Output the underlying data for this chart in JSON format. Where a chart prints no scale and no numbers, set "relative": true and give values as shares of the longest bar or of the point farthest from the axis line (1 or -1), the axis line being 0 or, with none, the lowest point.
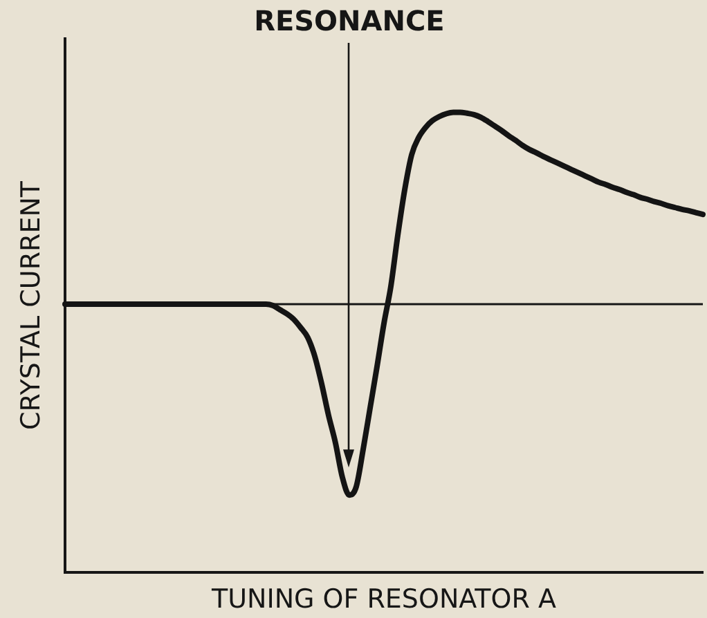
{
  "chart_data": {
    "type": "line",
    "relative": true,
    "xlabel": "TUNING OF RESONATOR A",
    "ylabel": "CRYSTAL CURRENT",
    "categories": [
      null,
      null,
      null,
      null,
      null,
      null,
      null,
      null,
      null,
      null,
      null,
      null,
      null,
      null,
      null,
      null,
      null,
      null,
      null,
      null,
      null,
      null,
      null,
      null,
      null,
      null,
      null,
      null,
      null,
      null,
      null,
      null,
      null,
      null,
      null,
      null,
      null,
      null,
      null,
      null,
      null,
      null,
      null,
      null,
      null,
      null,
      null,
      null,
      null,
      null,
      null,
      null,
      null,
      null,
      null,
      null,
      null,
      null,
      null,
      null,
      null,
      null,
      null,
      null,
      null,
      null,
      null,
      null,
      null,
      null,
      null,
      null,
      null,
      null,
      null,
      null,
      null,
      null,
      null,
      null,
      null,
      null,
      null,
      null,
      null,
      null,
      null,
      null,
      null,
      null,
      null,
      null,
      null
    ],
    "series": [
      {
        "color": "#141414",
        "values": [
          0.583,
          0.583,
          0.583,
          0.583,
          0.583,
          0.583,
          0.583,
          0.583,
          0.583,
          0.583,
          0.583,
          0.583,
          0.583,
          0.583,
          0.583,
          0.583,
          0.583,
          0.583,
          0.583,
          0.583,
          0.583,
          0.583,
          0.583,
          0.583,
          0.583,
          0.583,
          0.583,
          0.583,
          0.583,
          0.583,
          0.58,
          0.571,
          0.562,
          0.55,
          0.532,
          0.511,
          0.471,
          0.411,
          0.342,
          0.282,
          0.207,
          0.168,
          0.186,
          0.267,
          0.357,
          0.447,
          0.541,
          0.622,
          0.733,
          0.832,
          0.908,
          0.945,
          0.967,
          0.982,
          0.991,
          0.997,
          1.0,
          1.0,
          0.998,
          0.995,
          0.989,
          0.98,
          0.97,
          0.96,
          0.949,
          0.939,
          0.928,
          0.919,
          0.912,
          0.904,
          0.897,
          0.89,
          0.883,
          0.876,
          0.869,
          0.862,
          0.855,
          0.848,
          0.843,
          0.837,
          0.832,
          0.826,
          0.821,
          0.815,
          0.811,
          0.806,
          0.802,
          0.797,
          0.793,
          0.789,
          0.786,
          0.782,
          0.778
        ]
      }
    ],
    "ref_lines": [
      {
        "axis": "y",
        "value": 0.583
      }
    ],
    "annotations": [
      "RESONANCE"
    ],
    "marker": "none",
    "line_style": "solid"
  }
}
